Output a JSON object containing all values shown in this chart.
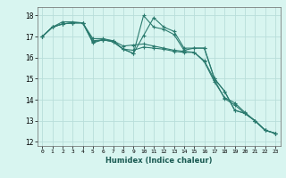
{
  "xlabel": "Humidex (Indice chaleur)",
  "background_color": "#d8f5f0",
  "grid_color": "#b8deda",
  "line_color": "#2a7a6e",
  "xlim": [
    -0.5,
    23.5
  ],
  "ylim": [
    11.8,
    18.4
  ],
  "yticks": [
    12,
    13,
    14,
    15,
    16,
    17,
    18
  ],
  "xticks": [
    0,
    1,
    2,
    3,
    4,
    5,
    6,
    7,
    8,
    9,
    10,
    11,
    12,
    13,
    14,
    15,
    16,
    17,
    18,
    19,
    20,
    21,
    22,
    23
  ],
  "series": [
    {
      "x": [
        0,
        1,
        2,
        3,
        4,
        5,
        6,
        7,
        8,
        9,
        10,
        11,
        12,
        13,
        14,
        15,
        16,
        17,
        18,
        19,
        20,
        21,
        22,
        23
      ],
      "y": [
        17.0,
        17.45,
        17.6,
        17.65,
        17.65,
        16.75,
        16.85,
        16.8,
        16.4,
        16.2,
        17.05,
        17.9,
        17.45,
        17.25,
        16.45,
        16.45,
        16.45,
        15.0,
        14.4,
        13.5,
        13.35,
        13.0,
        12.55,
        12.4
      ]
    },
    {
      "x": [
        0,
        1,
        2,
        3,
        4,
        5,
        6,
        7,
        8,
        9,
        10,
        11,
        12,
        13,
        14,
        15,
        16,
        17,
        18,
        19,
        20,
        21,
        22,
        23
      ],
      "y": [
        17.0,
        17.45,
        17.7,
        17.7,
        17.65,
        16.7,
        16.85,
        16.75,
        16.4,
        16.2,
        18.0,
        17.45,
        17.35,
        17.1,
        16.35,
        16.45,
        16.45,
        15.0,
        14.4,
        13.5,
        13.35,
        13.0,
        12.55,
        12.4
      ]
    },
    {
      "x": [
        0,
        1,
        2,
        3,
        4,
        5,
        6,
        7,
        8,
        9,
        10,
        11,
        12,
        13,
        14,
        15,
        16,
        17,
        18,
        19,
        20,
        21,
        22,
        23
      ],
      "y": [
        17.0,
        17.45,
        17.6,
        17.65,
        17.65,
        16.9,
        16.9,
        16.8,
        16.55,
        16.6,
        16.65,
        16.55,
        16.45,
        16.35,
        16.3,
        16.25,
        15.8,
        14.85,
        14.1,
        13.85,
        13.4,
        13.0,
        12.55,
        12.4
      ]
    },
    {
      "x": [
        0,
        1,
        2,
        3,
        4,
        5,
        6,
        7,
        8,
        9,
        10,
        11,
        12,
        13,
        14,
        15,
        16,
        17,
        18,
        19,
        20,
        21,
        22,
        23
      ],
      "y": [
        17.0,
        17.45,
        17.6,
        17.65,
        17.65,
        16.8,
        16.85,
        16.75,
        16.4,
        16.35,
        16.5,
        16.45,
        16.4,
        16.3,
        16.25,
        16.25,
        15.85,
        14.95,
        14.05,
        13.75,
        13.35,
        13.0,
        12.55,
        12.4
      ]
    }
  ]
}
